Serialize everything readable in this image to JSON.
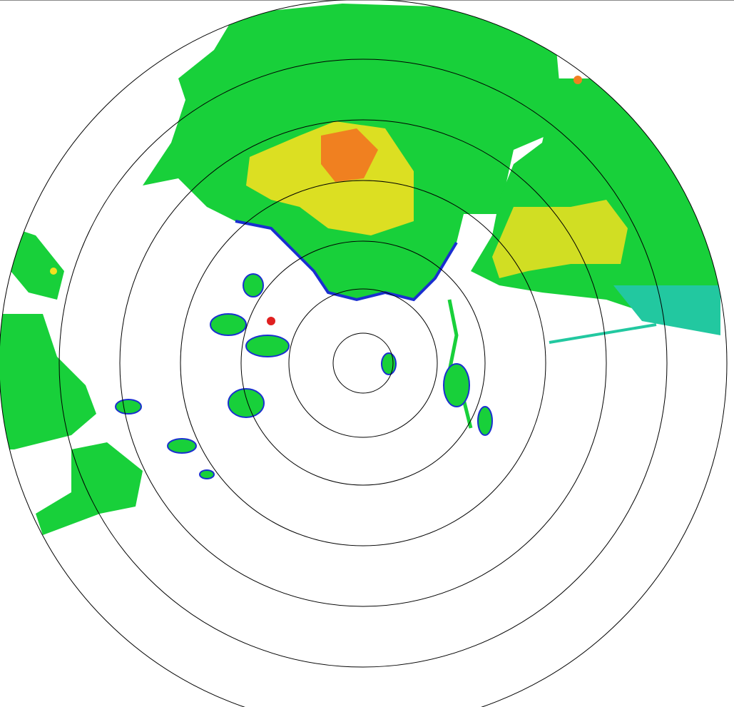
{
  "display": {
    "type": "radar-ppi",
    "range_ring_count": 7,
    "colors": {
      "background": "#ffffff",
      "ring": "#000000",
      "weak": "#1a2fd0",
      "light": "#22c8a0",
      "moderate": "#18d03a",
      "heavy": "#f2e020",
      "intense": "#f08020",
      "extreme": "#e02020"
    }
  }
}
